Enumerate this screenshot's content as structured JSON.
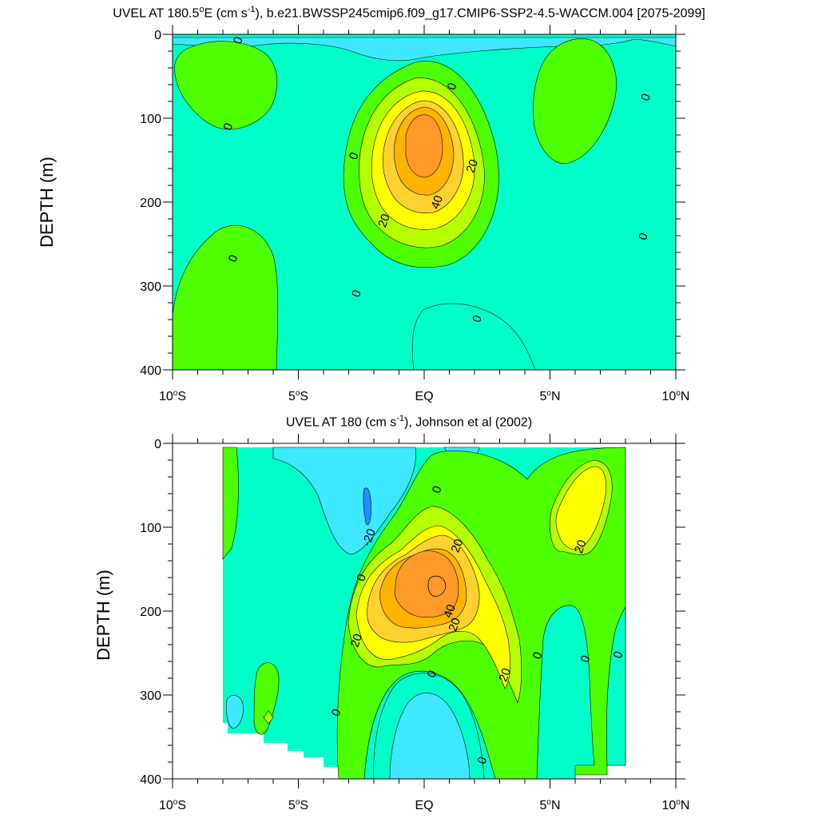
{
  "panels": [
    {
      "title_text": "UVEL AT 180.5",
      "title_deg": "o",
      "title_mid": "E (cm s",
      "title_exp": "-1",
      "title_end": "), b.e21.BWSSP245cmip6.f09_g17.CMIP6-SSP2-4.5-WACCM.004 [2075-2099]",
      "ylabel": "DEPTH (m)",
      "contour_labels": [
        {
          "text": "0",
          "lat": -7.4,
          "depth": 7
        },
        {
          "text": "0",
          "lat": 1.1,
          "depth": 62
        },
        {
          "text": "0",
          "lat": 8.8,
          "depth": 75
        },
        {
          "text": "0",
          "lat": -7.8,
          "depth": 110
        },
        {
          "text": "0",
          "lat": -2.8,
          "depth": 145
        },
        {
          "text": "20",
          "lat": 1.9,
          "depth": 157
        },
        {
          "text": "40",
          "lat": 0.5,
          "depth": 200
        },
        {
          "text": "20",
          "lat": -1.6,
          "depth": 222
        },
        {
          "text": "0",
          "lat": 8.7,
          "depth": 241
        },
        {
          "text": "0",
          "lat": -7.6,
          "depth": 267
        },
        {
          "text": "0",
          "lat": -2.7,
          "depth": 309
        },
        {
          "text": "0",
          "lat": 2.1,
          "depth": 339
        }
      ]
    },
    {
      "title_text": "UVEL AT 180 (cm s",
      "title_exp": "-1",
      "title_end": "), Johnson et al (2002)",
      "ylabel": "DEPTH (m)",
      "contour_labels": [
        {
          "text": "0",
          "lat": 0.5,
          "depth": 55
        },
        {
          "text": "-20",
          "lat": -2.2,
          "depth": 112
        },
        {
          "text": "20",
          "lat": 1.3,
          "depth": 122
        },
        {
          "text": "20",
          "lat": 6.2,
          "depth": 123
        },
        {
          "text": "0",
          "lat": -2.5,
          "depth": 160
        },
        {
          "text": "40",
          "lat": 1.0,
          "depth": 200
        },
        {
          "text": "20",
          "lat": 1.2,
          "depth": 216
        },
        {
          "text": "20",
          "lat": -2.7,
          "depth": 235
        },
        {
          "text": "0",
          "lat": 4.5,
          "depth": 253
        },
        {
          "text": "0",
          "lat": 6.4,
          "depth": 257
        },
        {
          "text": "0",
          "lat": 7.7,
          "depth": 252
        },
        {
          "text": "20",
          "lat": 3.2,
          "depth": 276
        },
        {
          "text": "0",
          "lat": 0.3,
          "depth": 275
        },
        {
          "text": "0",
          "lat": -3.5,
          "depth": 321
        },
        {
          "text": "0",
          "lat": 2.3,
          "depth": 378
        }
      ]
    }
  ],
  "axes": {
    "x_ticks": [
      {
        "lat": -10,
        "num": "10",
        "deg": "o",
        "hem": "S"
      },
      {
        "lat": -5,
        "num": "5",
        "deg": "o",
        "hem": "S"
      },
      {
        "lat": 0,
        "num": "EQ",
        "deg": "",
        "hem": ""
      },
      {
        "lat": 5,
        "num": "5",
        "deg": "o",
        "hem": "N"
      },
      {
        "lat": 10,
        "num": "10",
        "deg": "o",
        "hem": "N"
      }
    ],
    "y_ticks": [
      "0",
      "100",
      "200",
      "300",
      "400"
    ]
  },
  "chart_data": [
    {
      "type": "heatmap",
      "subtype": "filled-contour",
      "x_range": [
        -10,
        10
      ],
      "y_range": [
        0,
        400
      ],
      "y_reversed": true,
      "contour_interval": 10,
      "levels_colors": {
        "lt_-20": "#1e90ff",
        "-20_-10": "#3ee8ff",
        "-10_0": "#00ffc8",
        "0_10": "#4dff00",
        "10_20": "#b4ff00",
        "20_30": "#ffff00",
        "30_40": "#ffd230",
        "40_50": "#ffb400",
        "gt_50": "#ff9a28"
      },
      "grid": false
    },
    {
      "type": "heatmap",
      "subtype": "filled-contour",
      "x_range": [
        -10,
        10
      ],
      "y_range": [
        0,
        400
      ],
      "y_reversed": true,
      "data_extent_lat": [
        -8,
        8
      ],
      "contour_interval": 10,
      "grid": false
    }
  ]
}
